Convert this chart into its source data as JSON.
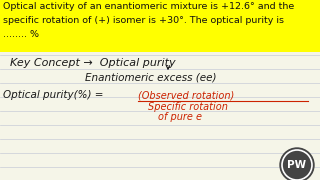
{
  "bg_color": "#f5f5e8",
  "header_bg": "#ffff00",
  "header_text_line1": "Optical activity of an enantiomeric mixture is +12.6° and the",
  "header_text_line2": "specific rotation of (+) isomer is +30°. The optical purity is",
  "header_text_line3": "........ %",
  "header_fontsize": 6.8,
  "line1_left": "Key Concept →  Optical purity",
  "line2": "Enantiomeric excess (ee)",
  "line3_left": "Optical purity(%) = ",
  "frac_num": "(Observed rotation)",
  "frac_den1": "Specific rotation",
  "frac_den2": "of pure e",
  "logo_text": "PW",
  "text_color_black": "#1a1a1a",
  "text_color_red": "#cc2200",
  "text_color_header": "#111111",
  "line_color": "#c8ccd8",
  "logo_bg": "#444444",
  "logo_ring": "#aaaaaa"
}
